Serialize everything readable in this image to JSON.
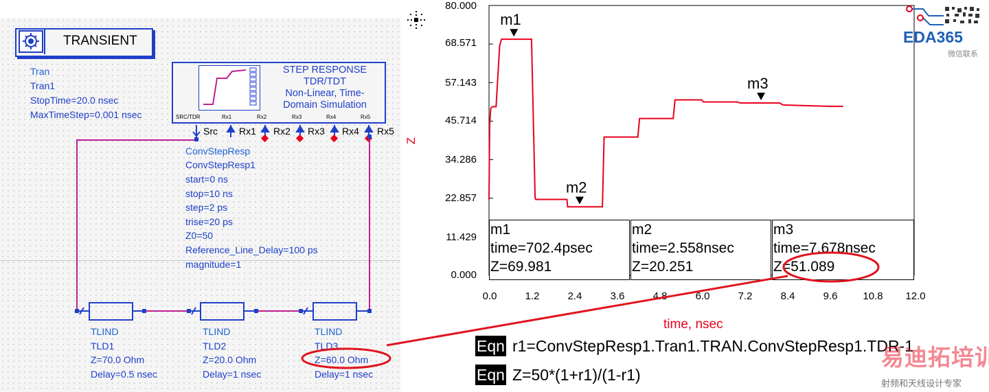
{
  "transient": {
    "title": "TRANSIENT",
    "props": [
      "Tran",
      "Tran1",
      "StopTime=20.0 nsec",
      "MaxTimeStep=0.001 nsec"
    ]
  },
  "step_response": {
    "lines": [
      "STEP RESPONSE",
      "TDR/TDT",
      "Non-Linear, Time-",
      "Domain Simulation"
    ],
    "pins_small": [
      "SRC/TDR",
      "Rx1",
      "Rx2",
      "Rx3",
      "Rx4",
      "Rx5"
    ],
    "pins": [
      "Src",
      "Rx1",
      "Rx2",
      "Rx3",
      "Rx4",
      "Rx5"
    ]
  },
  "conv_step": {
    "props": [
      "ConvStepResp",
      "ConvStepResp1",
      "start=0 ns",
      "stop=10 ns",
      "step=2 ps",
      "trise=20 ps",
      "Z0=50",
      "Reference_Line_Delay=100 ps",
      "magnitude=1"
    ]
  },
  "tlines": [
    {
      "props": [
        "TLIND",
        "TLD1",
        "Z=70.0 Ohm",
        "Delay=0.5 nsec"
      ]
    },
    {
      "props": [
        "TLIND",
        "TLD2",
        "Z=20.0 Ohm",
        "Delay=1 nsec"
      ]
    },
    {
      "props": [
        "TLIND",
        "TLD3",
        "Z=60.0 Ohm",
        "Delay=1 nsec"
      ]
    }
  ],
  "plot": {
    "ylabel": "Z",
    "xlabel": "time, nsec",
    "yticks": [
      "80.000",
      "68.571",
      "57.143",
      "45.714",
      "34.286",
      "22.857",
      "11.429",
      "0.000"
    ],
    "xticks": [
      "0.0",
      "1.2",
      "2.4",
      "3.6",
      "4.8",
      "6.0",
      "7.2",
      "8.4",
      "9.6",
      "10.8",
      "12.0"
    ],
    "markers": [
      {
        "name": "m1",
        "time": "time=702.4psec",
        "z": "Z=69.981"
      },
      {
        "name": "m2",
        "time": "time=2.558nsec",
        "z": "Z=20.251"
      },
      {
        "name": "m3",
        "time": "time=7.678nsec",
        "z": "Z=51.089"
      }
    ],
    "trace_color": "#e8001c"
  },
  "chart_data": {
    "type": "line",
    "xlabel": "time, nsec",
    "ylabel": "Z",
    "xlim": [
      0,
      12
    ],
    "ylim": [
      0,
      80
    ],
    "series": [
      {
        "x": [
          0.0,
          0.02,
          0.05,
          0.1,
          0.12,
          0.2,
          0.3,
          0.35,
          0.5,
          0.7,
          1.0,
          1.2,
          1.3,
          1.32,
          2.2,
          2.22,
          3.2,
          3.25,
          4.2,
          4.25,
          5.2,
          5.25,
          6.0,
          6.05,
          7.0,
          7.1,
          8.2,
          8.3,
          9.6,
          10.0
        ],
        "y": [
          22.5,
          45,
          49.5,
          50,
          50,
          50,
          68,
          70,
          70,
          70,
          70,
          70,
          23,
          22.5,
          22.5,
          20.3,
          20.3,
          41,
          41,
          46.5,
          46.5,
          52,
          52,
          51.4,
          51.4,
          51.1,
          51.1,
          50.5,
          50.1,
          50.1
        ]
      }
    ],
    "markers": [
      {
        "name": "m1",
        "x": 0.7024,
        "y": 69.981
      },
      {
        "name": "m2",
        "x": 2.558,
        "y": 20.251
      },
      {
        "name": "m3",
        "x": 7.678,
        "y": 51.089
      }
    ]
  },
  "equations": [
    {
      "tag": "Eqn",
      "text": "r1=ConvStepResp1.Tran1.TRAN.ConvStepResp1.TDR-1"
    },
    {
      "tag": "Eqn",
      "text": "Z=50*(1+r1)/(1-r1)"
    }
  ],
  "logo": {
    "text": "EDA365",
    "sub": "微信联系",
    "colors": {
      "brand": "#1f5fb8"
    }
  },
  "watermark": {
    "main": "易迪拓培训",
    "sub": "射频和天线设计专家"
  },
  "colors": {
    "schematic_blue": "#1f3fc9",
    "wire": "#bf1f8f",
    "annotation_red": "#e0141e"
  }
}
